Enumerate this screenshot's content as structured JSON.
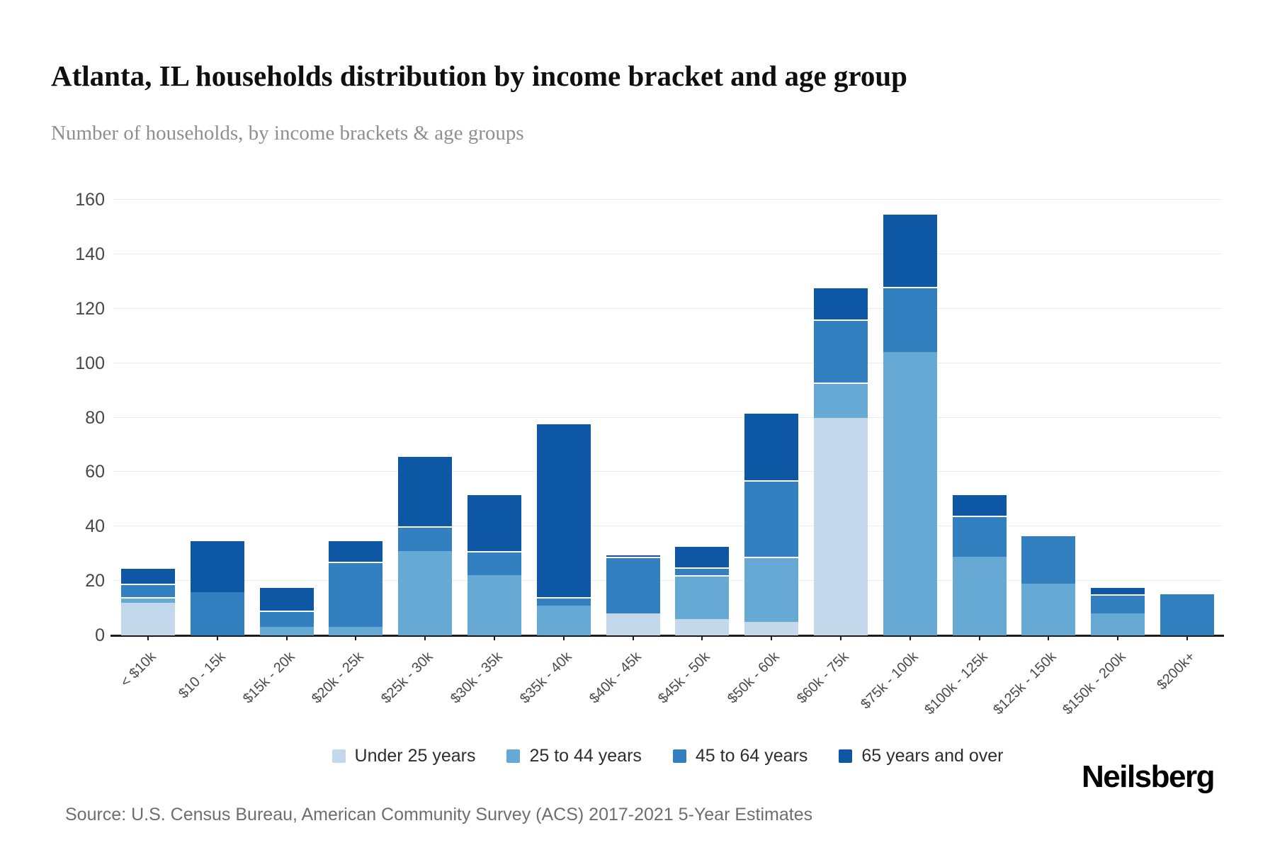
{
  "header": {
    "title": "Atlanta, IL households distribution by income bracket and age group",
    "subtitle": "Number of households, by income brackets & age groups"
  },
  "footer": {
    "source": "Source: U.S. Census Bureau, American Community Survey (ACS) 2017-2021 5-Year Estimates",
    "brand": "Neilsberg"
  },
  "chart_data": {
    "type": "bar",
    "stacked": true,
    "title": "Atlanta, IL households distribution by income bracket and age group",
    "subtitle": "Number of households, by income brackets & age groups",
    "xlabel": "",
    "ylabel": "Number of households",
    "ylim": [
      0,
      160
    ],
    "ytick_step": 20,
    "grid": true,
    "legend_position": "bottom",
    "categories": [
      "< $10k",
      "$10 - 15k",
      "$15k - 20k",
      "$20k - 25k",
      "$25k - 30k",
      "$30k - 35k",
      "$35k - 40k",
      "$40k - 45k",
      "$45k - 50k",
      "$50k - 60k",
      "$60k - 75k",
      "$75k - 100k",
      "$100k - 125k",
      "$125k - 150k",
      "$150k - 200k",
      "$200k+"
    ],
    "series": [
      {
        "name": "Under 25 years",
        "color": "#c3d9eb",
        "values": [
          12,
          0,
          0,
          0,
          0,
          0,
          0,
          8,
          6,
          5,
          80,
          0,
          0,
          0,
          0,
          0
        ]
      },
      {
        "name": "25 to 44 years",
        "color": "#67a9d5",
        "values": [
          2,
          0,
          3,
          3,
          31,
          22,
          11,
          0,
          16,
          24,
          13,
          104,
          29,
          19,
          8,
          0
        ]
      },
      {
        "name": "45 to 64 years",
        "color": "#3380c1",
        "values": [
          5,
          16,
          6,
          24,
          9,
          9,
          3,
          21,
          3,
          28,
          23,
          24,
          15,
          18,
          7,
          15
        ]
      },
      {
        "name": "65 years and over",
        "color": "#0d57a4",
        "values": [
          6,
          19,
          9,
          8,
          26,
          21,
          64,
          1,
          8,
          25,
          12,
          27,
          8,
          0,
          3,
          0
        ]
      }
    ],
    "totals": [
      25,
      35,
      18,
      35,
      66,
      52,
      78,
      30,
      33,
      82,
      128,
      155,
      52,
      37,
      18,
      15
    ]
  }
}
